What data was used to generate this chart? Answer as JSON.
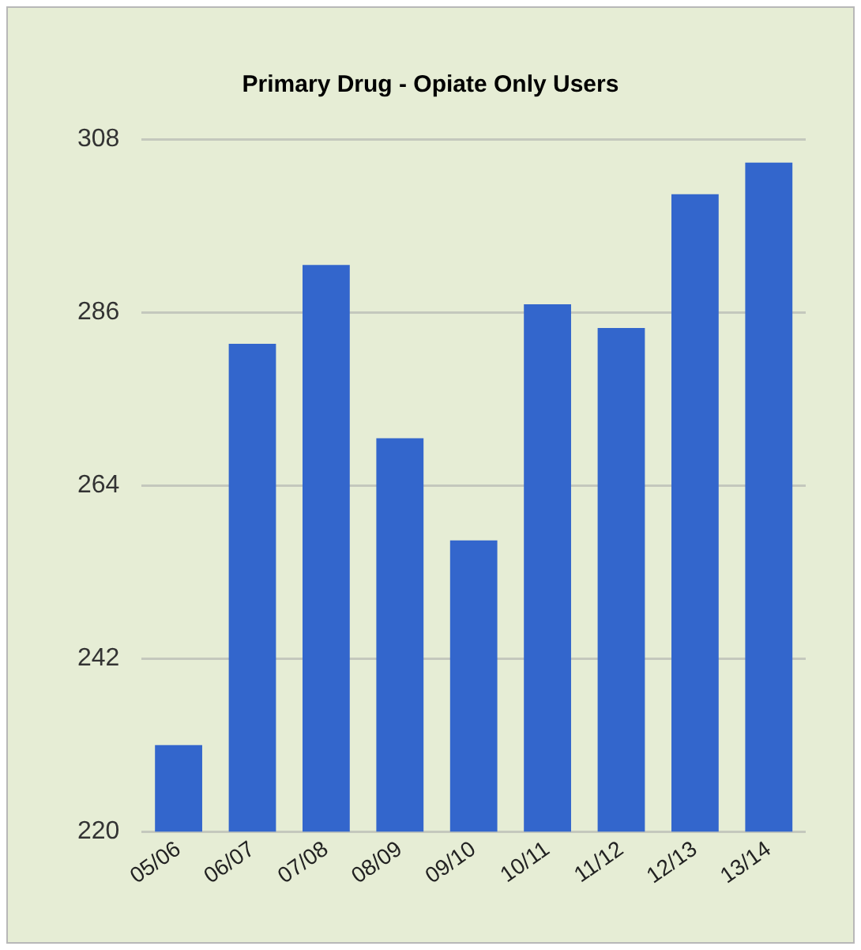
{
  "chart_data": {
    "type": "bar",
    "title": "Primary Drug - Opiate Only Users",
    "categories": [
      "05/06",
      "06/07",
      "07/08",
      "08/09",
      "09/10",
      "10/11",
      "11/12",
      "12/13",
      "13/14"
    ],
    "values": [
      231,
      282,
      292,
      270,
      257,
      287,
      284,
      301,
      305
    ],
    "color": "#3366cc",
    "ylim": [
      220,
      308
    ],
    "yticks": [
      220,
      242,
      264,
      286,
      308
    ],
    "grid": "y",
    "legend": false
  }
}
